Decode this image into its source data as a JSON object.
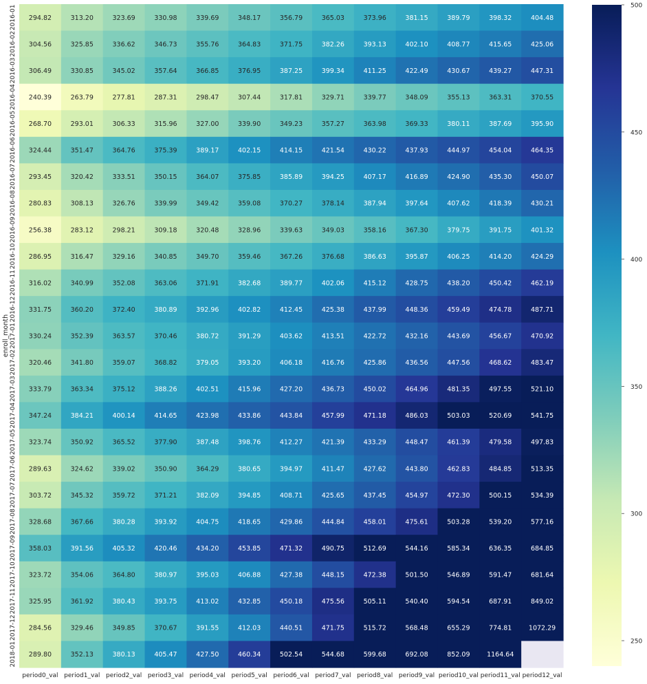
{
  "chart_data": {
    "type": "heatmap",
    "title": "",
    "ylabel": "enroll_month",
    "xlabel": "",
    "colormap": "YlGnBu",
    "nan_color": "#e9e7f2",
    "color_range": [
      240,
      500
    ],
    "colorbar_ticks": [
      250,
      300,
      350,
      400,
      450,
      500
    ],
    "columns": [
      "period0_val",
      "period1_val",
      "period2_val",
      "period3_val",
      "period4_val",
      "period5_val",
      "period6_val",
      "period7_val",
      "period8_val",
      "period9_val",
      "period10_val",
      "period11_val",
      "period12_val"
    ],
    "rows": [
      "2016-01",
      "2016-02",
      "2016-03",
      "2016-04",
      "2016-05",
      "2016-06",
      "2016-07",
      "2016-08",
      "2016-09",
      "2016-10",
      "2016-11",
      "2016-12",
      "2017-01",
      "2017-02",
      "2017-03",
      "2017-04",
      "2017-05",
      "2017-06",
      "2017-07",
      "2017-08",
      "2017-09",
      "2017-10",
      "2017-11",
      "2017-12",
      "2018-01"
    ],
    "values": [
      [
        294.82,
        313.2,
        323.69,
        330.98,
        339.69,
        348.17,
        356.79,
        365.03,
        373.96,
        381.15,
        389.79,
        398.32,
        404.48
      ],
      [
        304.56,
        325.85,
        336.62,
        346.73,
        355.76,
        364.83,
        371.75,
        382.26,
        393.13,
        402.1,
        408.77,
        415.65,
        425.06
      ],
      [
        306.49,
        330.85,
        345.02,
        357.64,
        366.85,
        376.95,
        387.25,
        399.34,
        411.25,
        422.49,
        430.67,
        439.27,
        447.31
      ],
      [
        240.39,
        263.79,
        277.81,
        287.31,
        298.47,
        307.44,
        317.81,
        329.71,
        339.77,
        348.09,
        355.13,
        363.31,
        370.55
      ],
      [
        268.7,
        293.01,
        306.33,
        315.96,
        327.0,
        339.9,
        349.23,
        357.27,
        363.98,
        369.33,
        380.11,
        387.69,
        395.9
      ],
      [
        324.44,
        351.47,
        364.76,
        375.39,
        389.17,
        402.15,
        414.15,
        421.54,
        430.22,
        437.93,
        444.97,
        454.04,
        464.35
      ],
      [
        293.45,
        320.42,
        333.51,
        350.15,
        364.07,
        375.85,
        385.89,
        394.25,
        407.17,
        416.89,
        424.9,
        435.3,
        450.07
      ],
      [
        280.83,
        308.13,
        326.76,
        339.99,
        349.42,
        359.08,
        370.27,
        378.14,
        387.94,
        397.64,
        407.62,
        418.39,
        430.21
      ],
      [
        256.38,
        283.12,
        298.21,
        309.18,
        320.48,
        328.96,
        339.63,
        349.03,
        358.16,
        367.3,
        379.75,
        391.75,
        401.32
      ],
      [
        286.95,
        316.47,
        329.16,
        340.85,
        349.7,
        359.46,
        367.26,
        376.68,
        386.63,
        395.87,
        406.25,
        414.2,
        424.29
      ],
      [
        316.02,
        340.99,
        352.08,
        363.06,
        371.91,
        382.68,
        389.77,
        402.06,
        415.12,
        428.75,
        438.2,
        450.42,
        462.19
      ],
      [
        331.75,
        360.2,
        372.4,
        380.89,
        392.96,
        402.82,
        412.45,
        425.38,
        437.99,
        448.36,
        459.49,
        474.78,
        487.71
      ],
      [
        330.24,
        352.39,
        363.57,
        370.46,
        380.72,
        391.29,
        403.62,
        413.51,
        422.72,
        432.16,
        443.69,
        456.67,
        470.92
      ],
      [
        320.46,
        341.8,
        359.07,
        368.82,
        379.05,
        393.2,
        406.18,
        416.76,
        425.86,
        436.56,
        447.56,
        468.62,
        483.47
      ],
      [
        333.79,
        363.34,
        375.12,
        388.26,
        402.51,
        415.96,
        427.2,
        436.73,
        450.02,
        464.96,
        481.35,
        497.55,
        521.1
      ],
      [
        347.24,
        384.21,
        400.14,
        414.65,
        423.98,
        433.86,
        443.84,
        457.99,
        471.18,
        486.03,
        503.03,
        520.69,
        541.75
      ],
      [
        323.74,
        350.92,
        365.52,
        377.9,
        387.48,
        398.76,
        412.27,
        421.39,
        433.29,
        448.47,
        461.39,
        479.58,
        497.83
      ],
      [
        289.63,
        324.62,
        339.02,
        350.9,
        364.29,
        380.65,
        394.97,
        411.47,
        427.62,
        443.8,
        462.83,
        484.85,
        513.35
      ],
      [
        303.72,
        345.32,
        359.72,
        371.21,
        382.09,
        394.85,
        408.71,
        425.65,
        437.45,
        454.97,
        472.3,
        500.15,
        534.39
      ],
      [
        328.68,
        367.66,
        380.28,
        393.92,
        404.75,
        418.65,
        429.86,
        444.84,
        458.01,
        475.61,
        503.28,
        539.2,
        577.16
      ],
      [
        358.03,
        391.56,
        405.32,
        420.46,
        434.2,
        453.85,
        471.32,
        490.75,
        512.69,
        544.16,
        585.34,
        636.35,
        684.85
      ],
      [
        323.72,
        354.06,
        364.8,
        380.97,
        395.03,
        406.88,
        427.38,
        448.15,
        472.38,
        501.5,
        546.89,
        591.47,
        681.64
      ],
      [
        325.95,
        361.92,
        380.43,
        393.75,
        413.02,
        432.85,
        450.18,
        475.56,
        505.11,
        540.4,
        594.54,
        687.91,
        849.02
      ],
      [
        284.56,
        329.46,
        349.85,
        370.67,
        391.55,
        412.03,
        440.51,
        471.75,
        515.72,
        568.48,
        655.29,
        774.81,
        1072.29
      ],
      [
        289.8,
        352.13,
        380.13,
        405.47,
        427.5,
        460.34,
        502.54,
        544.68,
        599.68,
        692.08,
        852.09,
        1164.64,
        null
      ]
    ]
  }
}
